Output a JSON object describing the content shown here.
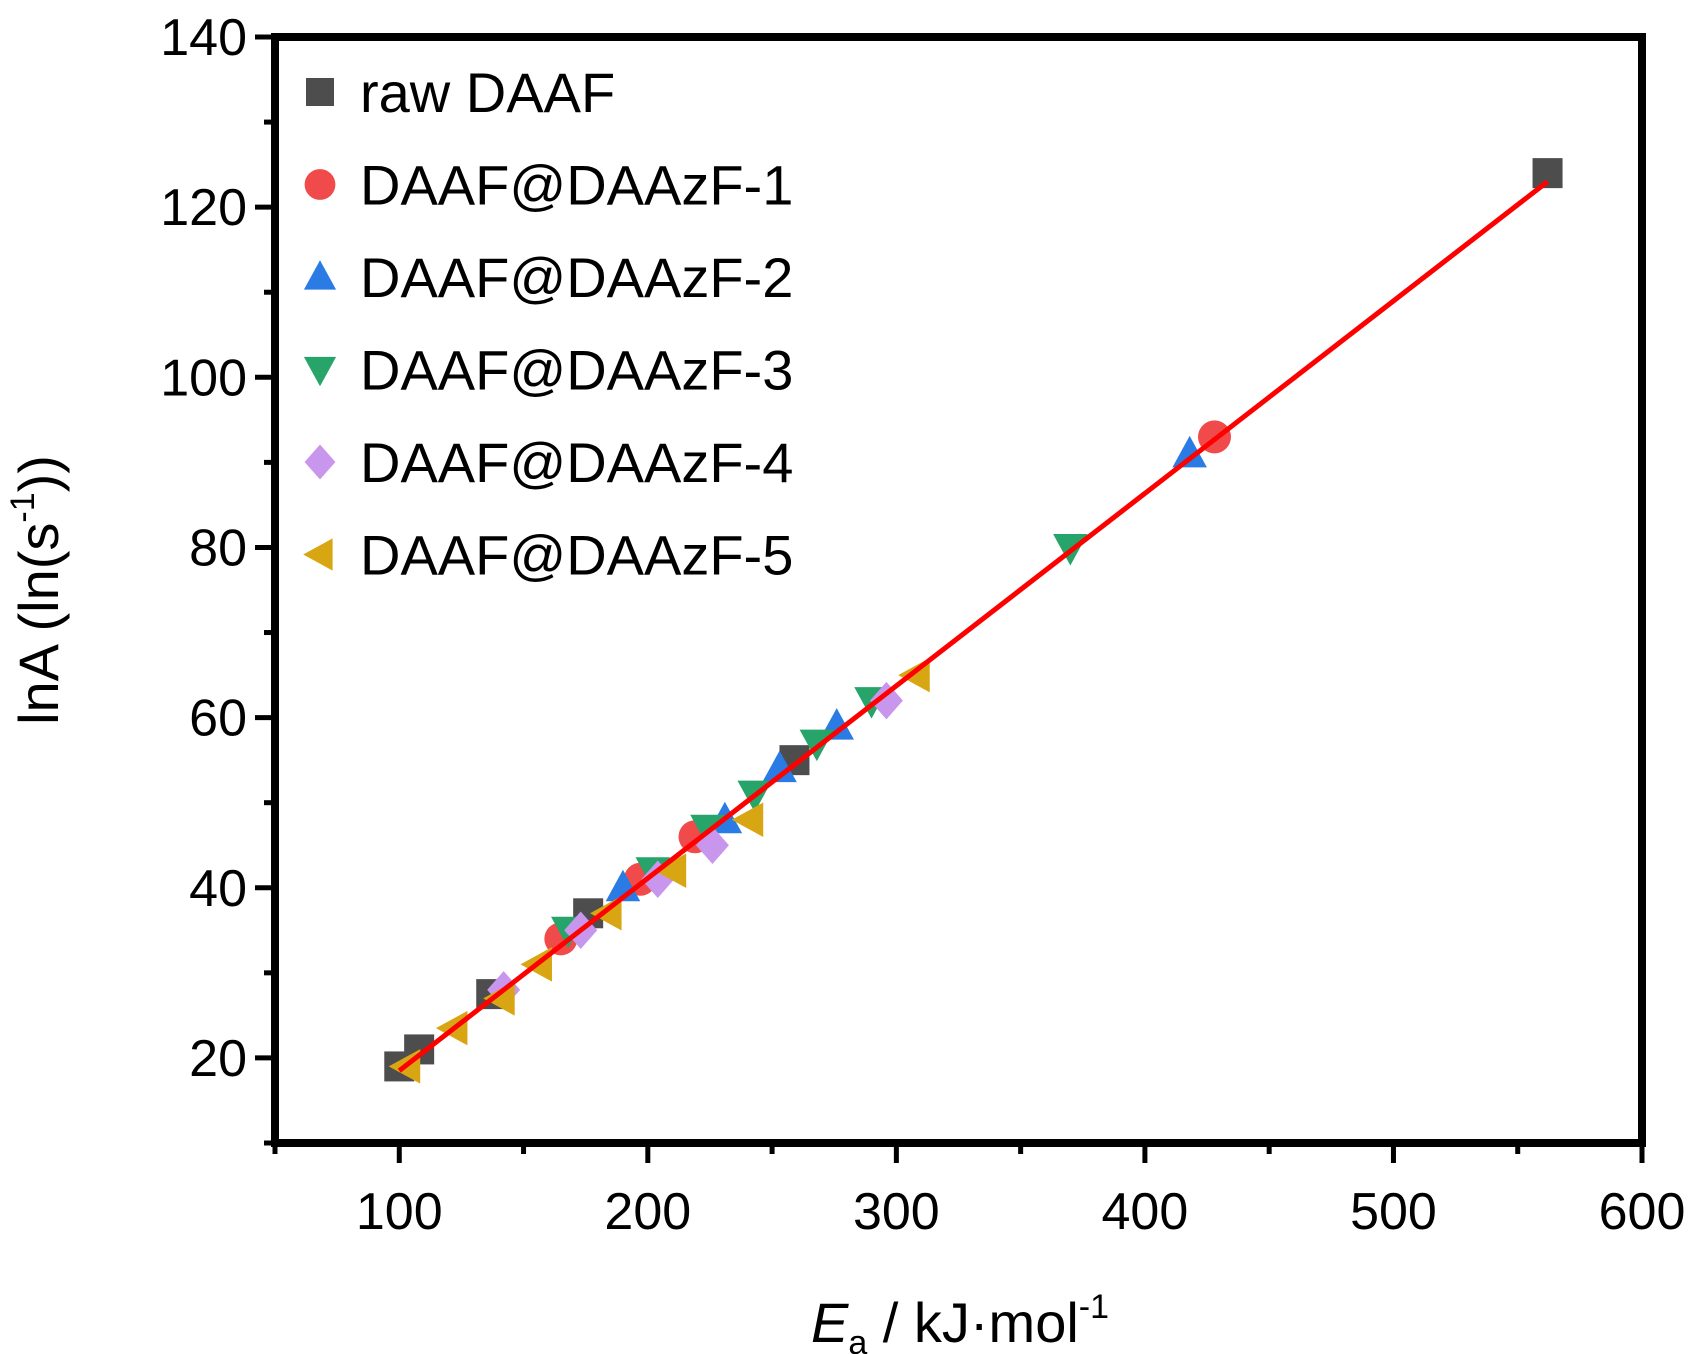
{
  "chart_data": {
    "type": "scatter",
    "title": "",
    "xlabel": {
      "main": "E",
      "sub": "a",
      "rest": " / kJ·mol",
      "sup": "-1"
    },
    "ylabel": {
      "main": "lnA (ln(s",
      "sup": "-1",
      "rest": "))"
    },
    "xlim": [
      50,
      600
    ],
    "ylim": [
      10,
      140
    ],
    "xticks": [
      100,
      200,
      300,
      400,
      500,
      600
    ],
    "yticks": [
      20,
      40,
      60,
      80,
      100,
      120,
      140
    ],
    "grid": false,
    "legend_position": "top-left",
    "series": [
      {
        "name": "raw DAAF",
        "marker": "square",
        "color": "#4d4d4d",
        "x": [
          100,
          108,
          137,
          176,
          259,
          562
        ],
        "y": [
          19,
          21,
          27.5,
          37,
          55,
          124
        ]
      },
      {
        "name": "DAAF@DAAzF-1",
        "marker": "circle",
        "color": "#f04a4a",
        "x": [
          165,
          197,
          219,
          428
        ],
        "y": [
          34,
          41,
          46,
          93
        ]
      },
      {
        "name": "DAAF@DAAzF-2",
        "marker": "triangle-up",
        "color": "#2a7be4",
        "x": [
          190,
          231,
          253,
          276,
          418
        ],
        "y": [
          40,
          48,
          54,
          59,
          91
        ]
      },
      {
        "name": "DAAF@DAAzF-3",
        "marker": "triangle-down",
        "color": "#27a46a",
        "x": [
          168,
          202,
          224,
          243,
          268,
          290,
          370
        ],
        "y": [
          35,
          42,
          47,
          51,
          57,
          62,
          80
        ]
      },
      {
        "name": "DAAF@DAAzF-4",
        "marker": "diamond",
        "color": "#c896ec",
        "x": [
          142,
          173,
          204,
          226,
          296
        ],
        "y": [
          28,
          35,
          41,
          45,
          62
        ]
      },
      {
        "name": "DAAF@DAAzF-5",
        "marker": "triangle-left",
        "color": "#d8a612",
        "x": [
          103,
          122,
          141,
          156,
          184,
          210,
          241,
          308
        ],
        "y": [
          19,
          23.5,
          27,
          31,
          37,
          42,
          48,
          65
        ]
      }
    ],
    "fit_line": {
      "color": "#ff0000",
      "x": [
        100,
        562
      ],
      "y": [
        18.5,
        123
      ]
    }
  }
}
